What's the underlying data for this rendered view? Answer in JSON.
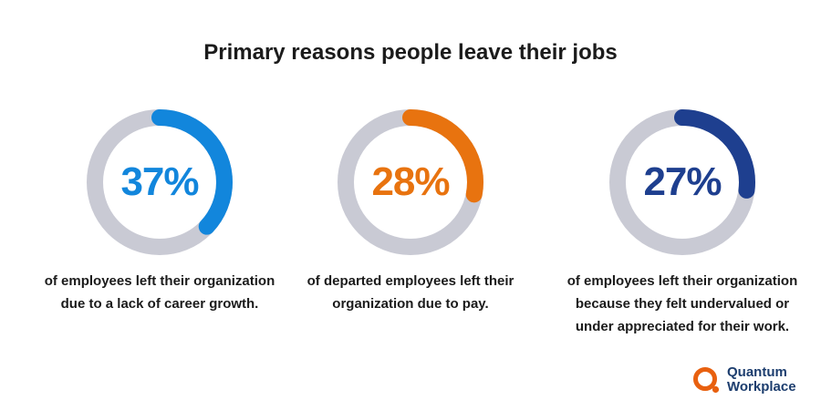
{
  "title": "Primary reasons people leave their jobs",
  "chart_data": {
    "type": "donut",
    "title": "Primary reasons people leave their jobs",
    "track_color": "#c9cad4",
    "items": [
      {
        "label": "37%",
        "value": 37,
        "color": "#1286dc",
        "description": [
          "of employees left their organization",
          "due to a lack of career growth."
        ]
      },
      {
        "label": "28%",
        "value": 28,
        "color": "#e8730f",
        "description": [
          "of departed employees left their",
          "organization due to pay."
        ]
      },
      {
        "label": "27%",
        "value": 27,
        "color": "#1e3f8f",
        "description": [
          "of employees left their organization",
          "because they felt undervalued or",
          "under appreciated for their work."
        ]
      }
    ]
  },
  "logo": {
    "line1": "Quantum",
    "line2": "Workplace",
    "mark_color": "#e8600f",
    "text_color": "#1c3d6e"
  }
}
